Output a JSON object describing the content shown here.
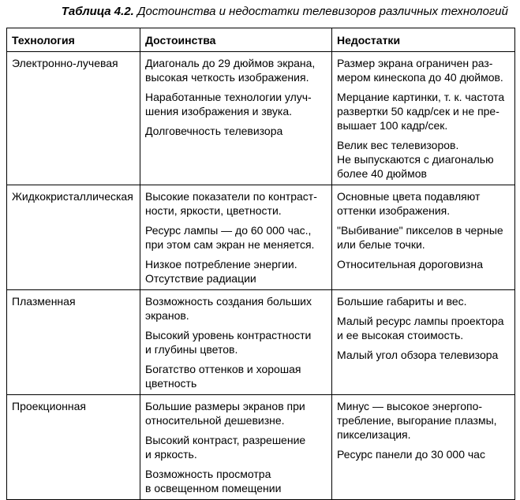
{
  "caption": {
    "label": "Таблица 4.2.",
    "text": "Достоинства и недостатки телевизоров различных технологий"
  },
  "table": {
    "headers": [
      "Технология",
      "Достоинства",
      "Недостатки"
    ],
    "rows": [
      {
        "technology": "Электронно-лучевая",
        "advantages": [
          [
            "Диагональ до 29 дюймов экрана,",
            "высокая четкость изображения."
          ],
          [
            "Наработанные технологии улуч-",
            "шения изображения и звука."
          ],
          [
            "Долговечность телевизора"
          ]
        ],
        "disadvantages": [
          [
            "Размер экрана ограничен раз-",
            "мером кинескопа до 40 дюймов."
          ],
          [
            "Мерцание картинки, т. к. частота",
            "развертки 50 кадр/сек и не пре-",
            "вышает 100 кадр/сек."
          ],
          [
            "Велик вес телевизоров.",
            "Не выпускаются с диагональю",
            "более 40 дюймов"
          ]
        ]
      },
      {
        "technology": "Жидкокристаллическая",
        "advantages": [
          [
            "Высокие показатели по контраст-",
            "ности, яркости, цветности."
          ],
          [
            "Ресурс лампы — до 60 000 час.,",
            "при этом сам экран не меняется."
          ],
          [
            "Низкое потребление энергии.",
            "Отсутствие радиации"
          ]
        ],
        "disadvantages": [
          [
            "Основные цвета подавляют",
            "оттенки изображения."
          ],
          [
            "\"Выбивание\" пикселов в черные",
            "или белые точки."
          ],
          [
            "Относительная дороговизна"
          ]
        ]
      },
      {
        "technology": "Плазменная",
        "advantages": [
          [
            "Возможность создания больших",
            "экранов."
          ],
          [
            "Высокий уровень контрастности",
            "и глубины цветов."
          ],
          [
            "Богатство оттенков и хорошая",
            "цветность"
          ]
        ],
        "disadvantages": [
          [
            "Большие габариты и вес."
          ],
          [
            "Малый ресурс лампы проектора",
            "и ее высокая стоимость."
          ],
          [
            "Малый угол обзора телевизора"
          ]
        ]
      },
      {
        "technology": "Проекционная",
        "advantages": [
          [
            "Большие размеры экранов при",
            "относительной дешевизне."
          ],
          [
            "Высокий контраст, разрешение",
            "и яркость."
          ],
          [
            "Возможность просмотра",
            "в освещенном помещении"
          ]
        ],
        "disadvantages": [
          [
            "Минус — высокое энергопо-",
            "требление, выгорание плазмы,",
            "пикселизация."
          ],
          [
            "Ресурс панели до 30 000 час"
          ]
        ]
      }
    ]
  }
}
